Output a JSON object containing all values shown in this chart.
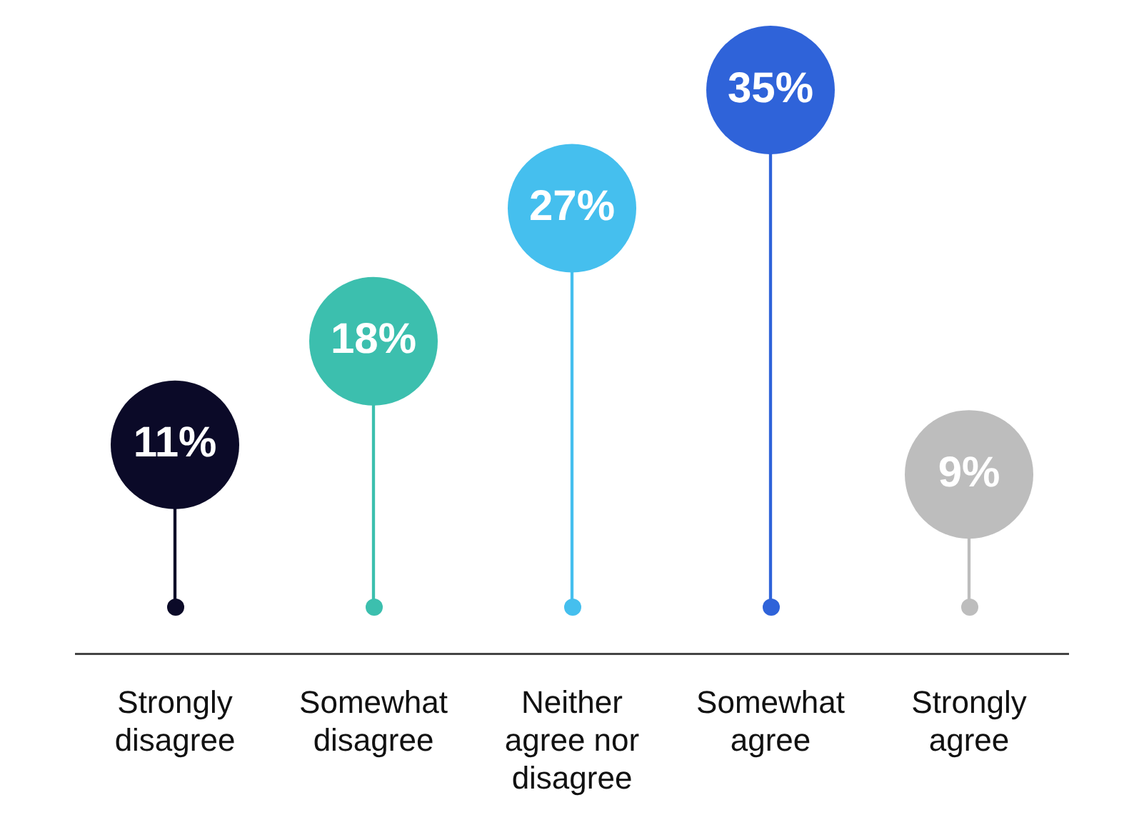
{
  "chart_data": {
    "type": "lollipop",
    "categories": [
      "Strongly disagree",
      "Somewhat disagree",
      "Neither agree nor disagree",
      "Somewhat agree",
      "Strongly agree"
    ],
    "values": [
      11,
      18,
      27,
      35,
      9
    ],
    "value_labels": [
      "11%",
      "18%",
      "27%",
      "35%",
      "9%"
    ],
    "colors": [
      "#0b0a28",
      "#3cbfae",
      "#45bfee",
      "#2f63d9",
      "#bdbdbd"
    ],
    "legend": false
  }
}
